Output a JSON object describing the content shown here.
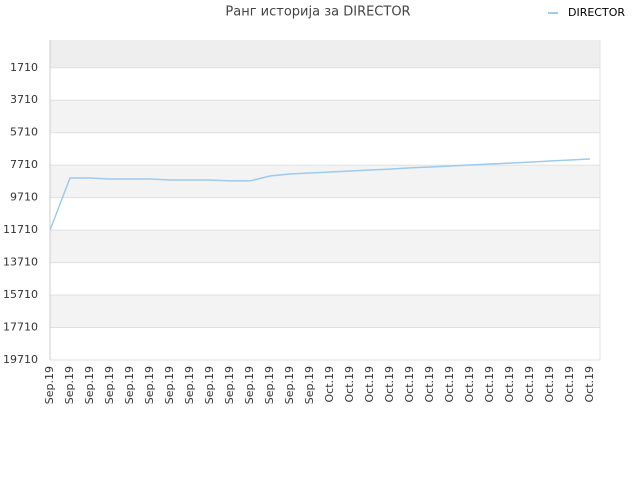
{
  "chart_data": {
    "type": "line",
    "title": "Ранг историја за DIRECTOR",
    "categories": [
      "Sep.19",
      "Sep.19",
      "Sep.19",
      "Sep.19",
      "Sep.19",
      "Sep.19",
      "Sep.19",
      "Sep.19",
      "Sep.19",
      "Sep.19",
      "Sep.19",
      "Sep.19",
      "Sep.19",
      "Sep.19",
      "Oct.19",
      "Oct.19",
      "Oct.19",
      "Oct.19",
      "Oct.19",
      "Oct.19",
      "Oct.19",
      "Oct.19",
      "Oct.19",
      "Oct.19",
      "Oct.19",
      "Oct.19",
      "Oct.19",
      "Oct.19"
    ],
    "series": [
      {
        "name": "DIRECTOR",
        "color": "#9ccaf0",
        "values": [
          11710,
          8500,
          8500,
          8560,
          8560,
          8560,
          8620,
          8620,
          8620,
          8680,
          8680,
          8380,
          8250,
          8190,
          8130,
          8070,
          8010,
          7950,
          7880,
          7820,
          7760,
          7700,
          7640,
          7580,
          7520,
          7450,
          7390,
          7330
        ]
      }
    ],
    "ylim": [
      19710,
      0
    ],
    "yticks": [
      1710,
      3710,
      5710,
      7710,
      9710,
      11710,
      13710,
      15710,
      17710,
      19710
    ],
    "grid": true,
    "legend": "top-right"
  }
}
